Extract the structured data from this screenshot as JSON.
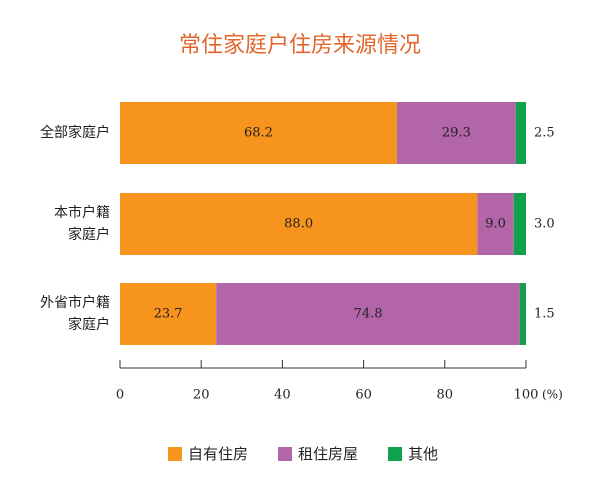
{
  "chart_data": {
    "type": "stacked-bar-horizontal",
    "title": "常住家庭户住房来源情况",
    "categories": [
      "全部家庭户",
      "本市户籍\n家庭户",
      "外省市户籍\n家庭户"
    ],
    "series": [
      {
        "name": "自有住房",
        "color": "#f7941d",
        "values": [
          68.2,
          88.0,
          23.7
        ],
        "value_labels": [
          "68.2",
          "88.0",
          "23.7"
        ]
      },
      {
        "name": "租住房屋",
        "color": "#b265a9",
        "values": [
          29.3,
          9.0,
          74.8
        ],
        "value_labels": [
          "29.3",
          "9.0",
          "74.8"
        ]
      },
      {
        "name": "其他",
        "color": "#12a14b",
        "values": [
          2.5,
          3.0,
          1.5
        ],
        "value_labels": [
          "2.5",
          "3.0",
          "1.5"
        ]
      }
    ],
    "xlabel": "(%)",
    "xlim": [
      0,
      100
    ],
    "xticks": [
      0,
      20,
      40,
      60,
      80,
      100
    ]
  }
}
